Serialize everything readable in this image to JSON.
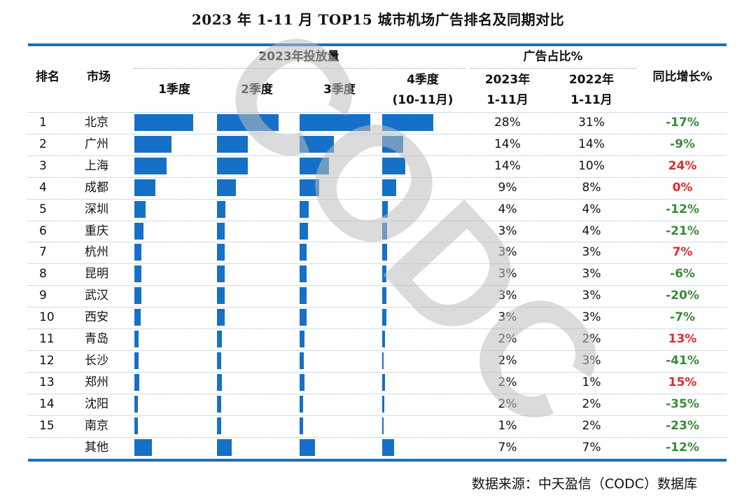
{
  "title": "2023 年 1-11 月 TOP15 城市机场广告排名及同期对比",
  "header": {
    "rank": "排名",
    "market": "市场",
    "group_volume": "2023年投放量",
    "q1": "1季度",
    "q2": "2季度",
    "q3": "3季度",
    "q4_line1": "4季度",
    "q4_line2": "(10-11月)",
    "group_share": "广告占比%",
    "share2023_line1": "2023年",
    "share2023_line2": "1-11月",
    "share2022_line1": "2022年",
    "share2022_line2": "1-11月",
    "yoy": "同比增长%"
  },
  "chart_data": {
    "type": "table",
    "bar_series": [
      "1季度",
      "2季度",
      "3季度",
      "4季度(10-11月)"
    ],
    "rows": [
      {
        "rank": "1",
        "city": "北京",
        "bars": [
          1.0,
          1.0,
          1.0,
          1.0
        ],
        "share_2023": "28%",
        "share_2022": "31%",
        "yoy": "-17%",
        "yoy_sign": "neg"
      },
      {
        "rank": "2",
        "city": "广州",
        "bars": [
          0.63,
          0.5,
          0.49,
          0.41
        ],
        "share_2023": "14%",
        "share_2022": "14%",
        "yoy": "-9%",
        "yoy_sign": "neg"
      },
      {
        "rank": "3",
        "city": "上海",
        "bars": [
          0.55,
          0.5,
          0.42,
          0.45
        ],
        "share_2023": "14%",
        "share_2022": "10%",
        "yoy": "24%",
        "yoy_sign": "pos"
      },
      {
        "rank": "4",
        "city": "成都",
        "bars": [
          0.36,
          0.31,
          0.28,
          0.27
        ],
        "share_2023": "9%",
        "share_2022": "8%",
        "yoy": "0%",
        "yoy_sign": "pos"
      },
      {
        "rank": "5",
        "city": "深圳",
        "bars": [
          0.19,
          0.14,
          0.13,
          0.11
        ],
        "share_2023": "4%",
        "share_2022": "4%",
        "yoy": "-12%",
        "yoy_sign": "neg"
      },
      {
        "rank": "6",
        "city": "重庆",
        "bars": [
          0.15,
          0.13,
          0.12,
          0.09
        ],
        "share_2023": "3%",
        "share_2022": "4%",
        "yoy": "-21%",
        "yoy_sign": "neg"
      },
      {
        "rank": "7",
        "city": "杭州",
        "bars": [
          0.12,
          0.12,
          0.1,
          0.09
        ],
        "share_2023": "3%",
        "share_2022": "3%",
        "yoy": "7%",
        "yoy_sign": "pos"
      },
      {
        "rank": "8",
        "city": "昆明",
        "bars": [
          0.12,
          0.12,
          0.1,
          0.08
        ],
        "share_2023": "3%",
        "share_2022": "3%",
        "yoy": "-6%",
        "yoy_sign": "neg"
      },
      {
        "rank": "9",
        "city": "武汉",
        "bars": [
          0.12,
          0.12,
          0.1,
          0.08
        ],
        "share_2023": "3%",
        "share_2022": "3%",
        "yoy": "-20%",
        "yoy_sign": "neg"
      },
      {
        "rank": "10",
        "city": "西安",
        "bars": [
          0.11,
          0.12,
          0.1,
          0.08
        ],
        "share_2023": "3%",
        "share_2022": "3%",
        "yoy": "-7%",
        "yoy_sign": "neg"
      },
      {
        "rank": "11",
        "city": "青岛",
        "bars": [
          0.07,
          0.08,
          0.07,
          0.05
        ],
        "share_2023": "2%",
        "share_2022": "2%",
        "yoy": "13%",
        "yoy_sign": "pos"
      },
      {
        "rank": "12",
        "city": "长沙",
        "bars": [
          0.07,
          0.07,
          0.06,
          0.03
        ],
        "share_2023": "2%",
        "share_2022": "3%",
        "yoy": "-41%",
        "yoy_sign": "neg"
      },
      {
        "rank": "13",
        "city": "郑州",
        "bars": [
          0.08,
          0.08,
          0.07,
          0.05
        ],
        "share_2023": "2%",
        "share_2022": "1%",
        "yoy": "15%",
        "yoy_sign": "pos"
      },
      {
        "rank": "14",
        "city": "沈阳",
        "bars": [
          0.06,
          0.07,
          0.05,
          0.04
        ],
        "share_2023": "2%",
        "share_2022": "2%",
        "yoy": "-35%",
        "yoy_sign": "neg"
      },
      {
        "rank": "15",
        "city": "南京",
        "bars": [
          0.06,
          0.07,
          0.05,
          0.03
        ],
        "share_2023": "1%",
        "share_2022": "2%",
        "yoy": "-23%",
        "yoy_sign": "neg"
      },
      {
        "rank": "",
        "city": "其他",
        "bars": [
          0.3,
          0.24,
          0.22,
          0.23
        ],
        "share_2023": "7%",
        "share_2022": "7%",
        "yoy": "-12%",
        "yoy_sign": "neg"
      }
    ]
  },
  "watermark": "CODC",
  "source": "数据来源：中天盈信（CODC）数据库",
  "colors": {
    "bar": "#1670c7",
    "rule": "#1c6fbe",
    "negative": "#3a8a3a",
    "positive": "#e02a2a",
    "watermark": "#c8c8c8"
  }
}
